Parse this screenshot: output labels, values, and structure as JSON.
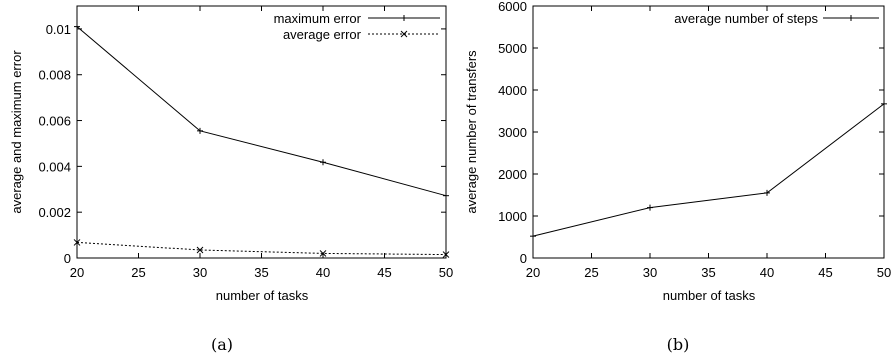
{
  "chart_data": [
    {
      "type": "line",
      "caption": "(a)",
      "xlabel": "number of tasks",
      "ylabel": "average and maximum error",
      "xlim": [
        20,
        50
      ],
      "ylim": [
        0,
        0.011
      ],
      "xticks": [
        20,
        25,
        30,
        35,
        40,
        45,
        50
      ],
      "yticks": [
        0,
        0.002,
        0.004,
        0.006,
        0.008,
        0.01
      ],
      "ytick_labels": [
        "0",
        "0.002",
        "0.004",
        "0.006",
        "0.008",
        "0.01"
      ],
      "legend_position": "top-right",
      "x": [
        20,
        30,
        40,
        50
      ],
      "series": [
        {
          "name": "maximum error",
          "values": [
            0.0101,
            0.00555,
            0.00418,
            0.00272
          ],
          "style": "solid",
          "marker": "plus"
        },
        {
          "name": "average error",
          "values": [
            0.00068,
            0.00035,
            0.0002,
            0.00015
          ],
          "style": "dotted",
          "marker": "cross"
        }
      ]
    },
    {
      "type": "line",
      "caption": "(b)",
      "xlabel": "number of tasks",
      "ylabel": "average number of transfers",
      "xlim": [
        20,
        50
      ],
      "ylim": [
        0,
        6000
      ],
      "xticks": [
        20,
        25,
        30,
        35,
        40,
        45,
        50
      ],
      "yticks": [
        0,
        1000,
        2000,
        3000,
        4000,
        5000,
        6000
      ],
      "ytick_labels": [
        "0",
        "1000",
        "2000",
        "3000",
        "4000",
        "5000",
        "6000"
      ],
      "legend_position": "top-right",
      "x": [
        20,
        30,
        40,
        50
      ],
      "series": [
        {
          "name": "average number of steps",
          "values": [
            520,
            1200,
            1550,
            3670
          ],
          "style": "solid",
          "marker": "plus"
        }
      ]
    }
  ]
}
